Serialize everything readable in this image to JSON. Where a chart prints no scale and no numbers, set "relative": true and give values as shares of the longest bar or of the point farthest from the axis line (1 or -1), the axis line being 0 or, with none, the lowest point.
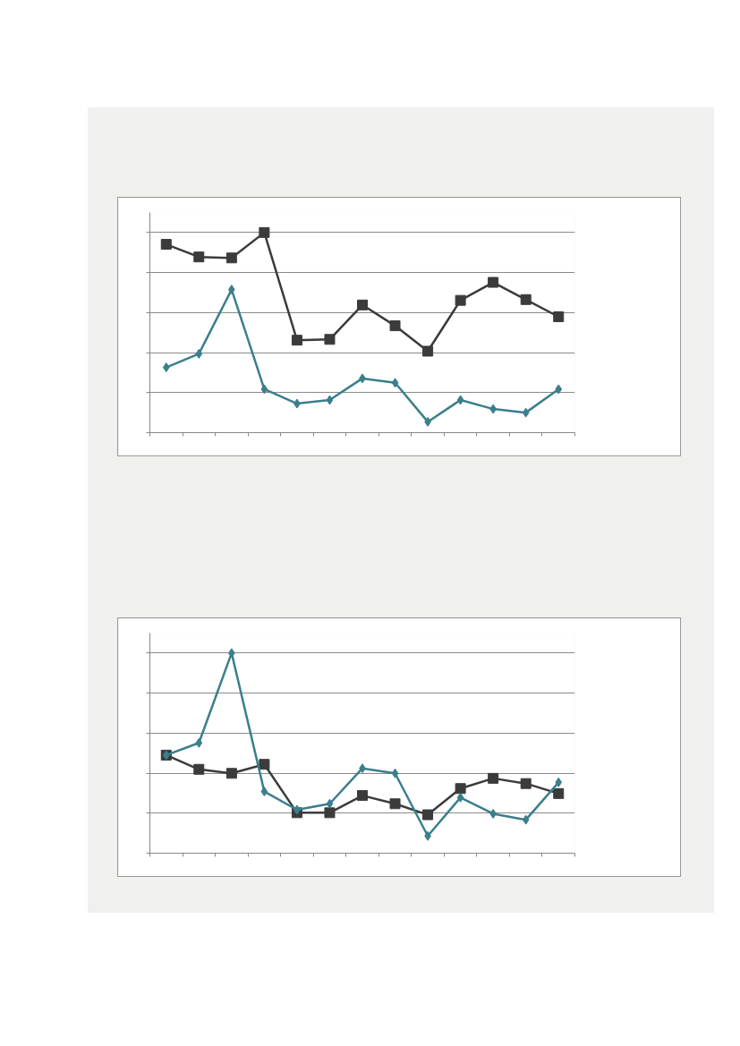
{
  "chart_data": [
    {
      "type": "line",
      "relative": true,
      "categories": [
        null,
        null,
        null,
        null,
        null,
        null,
        null,
        null,
        null,
        null,
        null,
        null,
        null
      ],
      "grid": "y",
      "line_style": "solid",
      "series": [
        {
          "color": "#3a7f8b",
          "marker": "diamond",
          "values": [
            0.326,
            0.394,
            0.715,
            0.217,
            0.145,
            0.163,
            0.271,
            0.249,
            0.054,
            0.163,
            0.118,
            0.1,
            0.217
          ]
        },
        {
          "color": "#3b3b3b",
          "marker": "square",
          "values": [
            0.941,
            0.878,
            0.873,
            1,
            0.462,
            0.466,
            0.638,
            0.534,
            0.407,
            0.661,
            0.751,
            0.665,
            0.579
          ]
        }
      ]
    },
    {
      "type": "line",
      "relative": true,
      "categories": [
        null,
        null,
        null,
        null,
        null,
        null,
        null,
        null,
        null,
        null,
        null,
        null,
        null
      ],
      "grid": "y",
      "line_style": "solid",
      "series": [
        {
          "color": "#3a7f8b",
          "marker": "diamond",
          "values": [
            0.49,
            0.551,
            1,
            0.308,
            0.217,
            0.247,
            0.424,
            0.399,
            0.086,
            0.278,
            0.197,
            0.167,
            0.354
          ]
        },
        {
          "color": "#3b3b3b",
          "marker": "square",
          "values": [
            0.49,
            0.419,
            0.399,
            0.444,
            0.202,
            0.202,
            0.288,
            0.247,
            0.192,
            0.323,
            0.374,
            0.348,
            0.298
          ]
        }
      ]
    }
  ]
}
